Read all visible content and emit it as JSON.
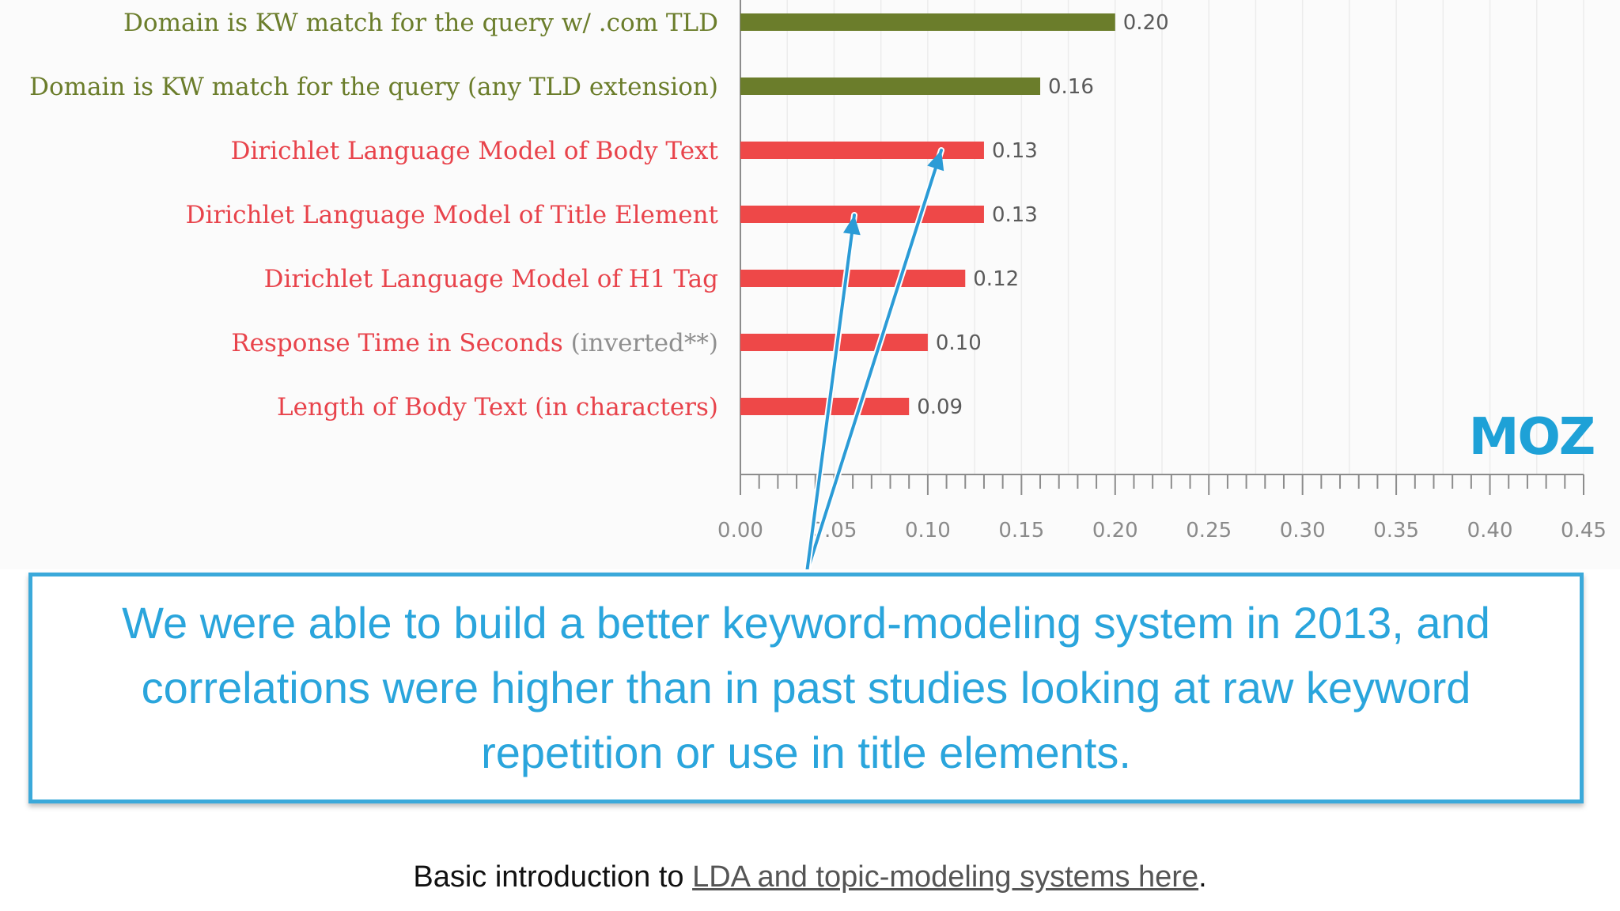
{
  "chart_data": {
    "type": "bar",
    "orientation": "horizontal",
    "categories": [
      "Domain is KW match for the query w/ .com TLD",
      "Domain is KW match for the query (any TLD extension)",
      "Dirichlet Language Model of Body Text",
      "Dirichlet Language Model of Title Element",
      "Dirichlet Language Model of H1 Tag",
      "Response Time in Seconds",
      "Length of Body Text (in characters)"
    ],
    "category_suffixes": [
      "",
      "",
      "",
      "",
      "",
      " (inverted**)",
      ""
    ],
    "values": [
      0.2,
      0.16,
      0.13,
      0.13,
      0.12,
      0.1,
      0.09
    ],
    "value_labels": [
      "0.20",
      "0.16",
      "0.13",
      "0.13",
      "0.12",
      "0.10",
      "0.09"
    ],
    "bar_colors": [
      "#6b7d2b",
      "#6b7d2b",
      "#ee4848",
      "#ee4848",
      "#ee4848",
      "#ee4848",
      "#ee4848"
    ],
    "label_colors": [
      "#6b7d2b",
      "#6b7d2b",
      "#e8434b",
      "#e8434b",
      "#e8434b",
      "#e8434b",
      "#e8434b"
    ],
    "suffix_color": "#8f8f8f",
    "xlim": [
      0,
      0.45
    ],
    "xticks": [
      "0.00",
      "0.05",
      "0.10",
      "0.15",
      "0.20",
      "0.25",
      "0.30",
      "0.35",
      "0.40",
      "0.45"
    ],
    "grid": true,
    "annotation_arrows_point_to": [
      "Dirichlet Language Model of Body Text",
      "Dirichlet Language Model of Title Element"
    ]
  },
  "logo": {
    "text": "MOZ",
    "color": "#1ea1d7"
  },
  "callout": {
    "text": "We were able to build a better keyword-modeling system in 2013, and correlations were higher than in past studies looking at raw keyword repetition or use in title elements.",
    "color": "#2aa5dc"
  },
  "footer": {
    "prefix": "Basic introduction to ",
    "link_text": "LDA and topic-modeling systems here",
    "suffix": "."
  }
}
